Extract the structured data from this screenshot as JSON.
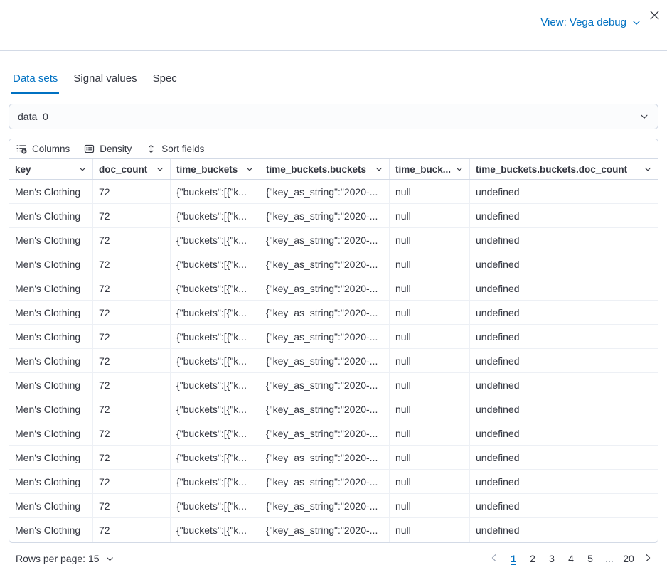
{
  "header": {
    "view_label": "View: Vega debug"
  },
  "icons": {
    "view_dropdown": "chevron-down-icon",
    "close": "close-icon",
    "dataset_select": "chevron-down-icon",
    "columns": "columns-add-icon",
    "density": "table-density-icon",
    "sort": "sort-vertical-icon",
    "column_header": "chevron-down-icon",
    "rows_per_page": "chevron-down-icon",
    "prev_page": "chevron-left-icon",
    "next_page": "chevron-right-icon"
  },
  "tabs": [
    {
      "label": "Data sets",
      "active": true
    },
    {
      "label": "Signal values",
      "active": false
    },
    {
      "label": "Spec",
      "active": false
    }
  ],
  "dataset_select": {
    "value": "data_0"
  },
  "toolbar": {
    "columns_label": "Columns",
    "density_label": "Density",
    "sort_label": "Sort fields"
  },
  "table": {
    "columns": [
      "key",
      "doc_count",
      "time_buckets",
      "time_buckets.buckets",
      "time_buck...",
      "time_buckets.buckets.doc_count"
    ],
    "rows": [
      [
        "Men's Clothing",
        "72",
        "{\"buckets\":[{\"k...",
        "{\"key_as_string\":\"2020-...",
        "null",
        "undefined"
      ],
      [
        "Men's Clothing",
        "72",
        "{\"buckets\":[{\"k...",
        "{\"key_as_string\":\"2020-...",
        "null",
        "undefined"
      ],
      [
        "Men's Clothing",
        "72",
        "{\"buckets\":[{\"k...",
        "{\"key_as_string\":\"2020-...",
        "null",
        "undefined"
      ],
      [
        "Men's Clothing",
        "72",
        "{\"buckets\":[{\"k...",
        "{\"key_as_string\":\"2020-...",
        "null",
        "undefined"
      ],
      [
        "Men's Clothing",
        "72",
        "{\"buckets\":[{\"k...",
        "{\"key_as_string\":\"2020-...",
        "null",
        "undefined"
      ],
      [
        "Men's Clothing",
        "72",
        "{\"buckets\":[{\"k...",
        "{\"key_as_string\":\"2020-...",
        "null",
        "undefined"
      ],
      [
        "Men's Clothing",
        "72",
        "{\"buckets\":[{\"k...",
        "{\"key_as_string\":\"2020-...",
        "null",
        "undefined"
      ],
      [
        "Men's Clothing",
        "72",
        "{\"buckets\":[{\"k...",
        "{\"key_as_string\":\"2020-...",
        "null",
        "undefined"
      ],
      [
        "Men's Clothing",
        "72",
        "{\"buckets\":[{\"k...",
        "{\"key_as_string\":\"2020-...",
        "null",
        "undefined"
      ],
      [
        "Men's Clothing",
        "72",
        "{\"buckets\":[{\"k...",
        "{\"key_as_string\":\"2020-...",
        "null",
        "undefined"
      ],
      [
        "Men's Clothing",
        "72",
        "{\"buckets\":[{\"k...",
        "{\"key_as_string\":\"2020-...",
        "null",
        "undefined"
      ],
      [
        "Men's Clothing",
        "72",
        "{\"buckets\":[{\"k...",
        "{\"key_as_string\":\"2020-...",
        "null",
        "undefined"
      ],
      [
        "Men's Clothing",
        "72",
        "{\"buckets\":[{\"k...",
        "{\"key_as_string\":\"2020-...",
        "null",
        "undefined"
      ],
      [
        "Men's Clothing",
        "72",
        "{\"buckets\":[{\"k...",
        "{\"key_as_string\":\"2020-...",
        "null",
        "undefined"
      ],
      [
        "Men's Clothing",
        "72",
        "{\"buckets\":[{\"k...",
        "{\"key_as_string\":\"2020-...",
        "null",
        "undefined"
      ]
    ]
  },
  "pagination": {
    "rows_per_page_label": "Rows per page: 15",
    "pages": [
      "1",
      "2",
      "3",
      "4",
      "5",
      "...",
      "20"
    ],
    "active_page": "1"
  },
  "colors": {
    "primary": "#0071c2",
    "text": "#343741",
    "border": "#d3dae6",
    "disabled": "#98a2b3"
  }
}
